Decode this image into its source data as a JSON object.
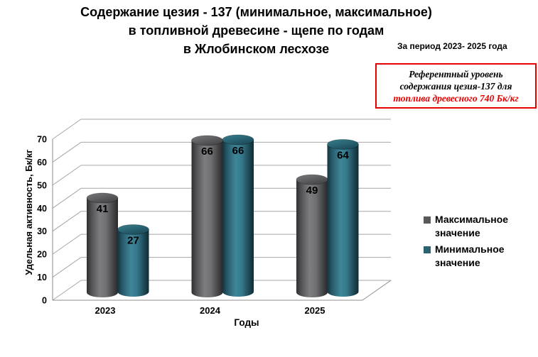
{
  "title": {
    "line1": "Содержание цезия - 137 (минимальное, максимальное)",
    "line2": "в топливной древесине - щепе по годам",
    "line3": "в Жлобинском лесхозе",
    "period_note": "За период 2023- 2025 года"
  },
  "reference_box": {
    "line1": "Референтный  уровень",
    "line2": "содержания цезия-137 для",
    "line3": "топлива древесного 740 Бк/кг",
    "border_color": "#e60000",
    "highlight_color": "#e60000"
  },
  "chart_data": {
    "type": "bar",
    "subtype": "3d-cylinder",
    "categories": [
      "2023",
      "2024",
      "2025"
    ],
    "series": [
      {
        "name": "Максимальное значение",
        "values": [
          41,
          66,
          49
        ],
        "color": "#595959"
      },
      {
        "name": "Минимальное значение",
        "values": [
          27,
          66,
          64
        ],
        "color": "#2b6272"
      }
    ],
    "data_labels": [
      [
        41,
        66,
        49
      ],
      [
        27,
        66,
        64
      ]
    ],
    "xlabel": "Годы",
    "ylabel": "Удельная активность, Бк/кг",
    "ylim": [
      0,
      70
    ],
    "ytick_step": 10,
    "yticks": [
      "0",
      "10",
      "20",
      "30",
      "40",
      "50",
      "60",
      "70"
    ],
    "grid": true,
    "legend_position": "right"
  }
}
